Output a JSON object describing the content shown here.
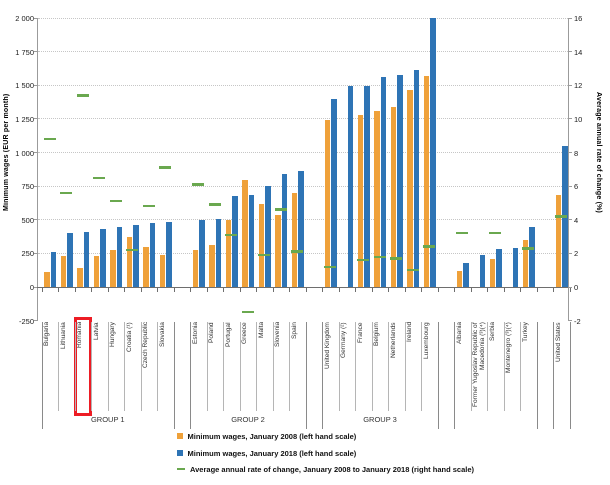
{
  "chart_data": {
    "type": "bar",
    "title": "",
    "left_axis": {
      "label": "Minimum wages (EUR per month)",
      "min": -250,
      "max": 2000,
      "step": 250,
      "ticks": [
        "2 000",
        "1 750",
        "1 500",
        "1 250",
        "1 000",
        "750",
        "500",
        "250",
        "0",
        "-250"
      ]
    },
    "right_axis": {
      "label": "Average annual rate of change (%)",
      "min": -2,
      "max": 16,
      "step": 2,
      "ticks": [
        "16",
        "14",
        "12",
        "10",
        "8",
        "6",
        "4",
        "2",
        "0",
        "-2"
      ]
    },
    "series_colors": {
      "wage_2008": "#efa13a",
      "wage_2018": "#2e74b5",
      "rate": "#6aa84f"
    },
    "highlight_color": "#ed1c24",
    "grid": "dotted horizontal",
    "groups": [
      {
        "label": "GROUP 1",
        "countries": [
          {
            "name": "Bulgaria",
            "wage_2008": 112,
            "wage_2018": 261,
            "rate": 8.8
          },
          {
            "name": "Lithuania",
            "wage_2008": 232,
            "wage_2018": 400,
            "rate": 5.6
          },
          {
            "name": "Romania",
            "wage_2008": 139,
            "wage_2018": 408,
            "rate": 11.4,
            "highlight": true
          },
          {
            "name": "Latvia",
            "wage_2008": 230,
            "wage_2018": 430,
            "rate": 6.5
          },
          {
            "name": "Hungary",
            "wage_2008": 272,
            "wage_2018": 445,
            "rate": 5.1
          },
          {
            "name": "Croatia (¹)",
            "wage_2008": 374,
            "wage_2018": 462,
            "rate": 2.2
          },
          {
            "name": "Czech Republic",
            "wage_2008": 300,
            "wage_2018": 478,
            "rate": 4.8
          },
          {
            "name": "Slovakia",
            "wage_2008": 241,
            "wage_2018": 480,
            "rate": 7.1
          }
        ]
      },
      {
        "label": "GROUP 2",
        "countries": [
          {
            "name": "Estonia",
            "wage_2008": 278,
            "wage_2018": 500,
            "rate": 6.1
          },
          {
            "name": "Poland",
            "wage_2008": 313,
            "wage_2018": 503,
            "rate": 4.9
          },
          {
            "name": "Portugal",
            "wage_2008": 497,
            "wage_2018": 677,
            "rate": 3.1
          },
          {
            "name": "Greece",
            "wage_2008": 794,
            "wage_2018": 684,
            "rate": -1.5
          },
          {
            "name": "Malta",
            "wage_2008": 617,
            "wage_2018": 748,
            "rate": 1.9
          },
          {
            "name": "Slovenia",
            "wage_2008": 539,
            "wage_2018": 843,
            "rate": 4.6
          },
          {
            "name": "Spain",
            "wage_2008": 700,
            "wage_2018": 859,
            "rate": 2.1
          }
        ]
      },
      {
        "label": "GROUP 3",
        "countries": [
          {
            "name": "United Kingdom",
            "wage_2008": 1242,
            "wage_2018": 1401,
            "rate": 1.2
          },
          {
            "name": "Germany (²)",
            "wage_2008": null,
            "wage_2018": 1498,
            "rate": null
          },
          {
            "name": "France",
            "wage_2008": 1280,
            "wage_2018": 1498,
            "rate": 1.6
          },
          {
            "name": "Belgium",
            "wage_2008": 1310,
            "wage_2018": 1563,
            "rate": 1.8
          },
          {
            "name": "Netherlands",
            "wage_2008": 1335,
            "wage_2018": 1578,
            "rate": 1.7
          },
          {
            "name": "Ireland",
            "wage_2008": 1462,
            "wage_2018": 1614,
            "rate": 1.0
          },
          {
            "name": "Luxembourg",
            "wage_2008": 1570,
            "wage_2018": 1999,
            "rate": 2.4
          }
        ]
      },
      {
        "label": "",
        "countries": [
          {
            "name": "Albania",
            "wage_2008": 120,
            "wage_2018": 176,
            "rate": 3.2
          },
          {
            "name": "Former Yugoslav Republic of Macedonia (³)(⁴)",
            "wage_2008": null,
            "wage_2018": 240,
            "rate": null
          },
          {
            "name": "Serbia",
            "wage_2008": 205,
            "wage_2018": 281,
            "rate": 3.2
          },
          {
            "name": "Montenegro (³)(⁴)",
            "wage_2008": null,
            "wage_2018": 288,
            "rate": null
          },
          {
            "name": "Turkey",
            "wage_2008": 353,
            "wage_2018": 444,
            "rate": 2.3
          }
        ]
      },
      {
        "label": "",
        "countries": [
          {
            "name": "United States",
            "wage_2008": 685,
            "wage_2018": 1048,
            "rate": 4.2
          }
        ]
      }
    ],
    "legend": [
      {
        "marker": "orange-square",
        "label": "Minimum wages, January 2008 (left hand scale)"
      },
      {
        "marker": "blue-square",
        "label": "Minimum wages, January 2018 (left hand scale)"
      },
      {
        "marker": "green-dash",
        "label": "Average annual rate of change, January 2008 to January 2018 (right hand scale)"
      }
    ]
  }
}
